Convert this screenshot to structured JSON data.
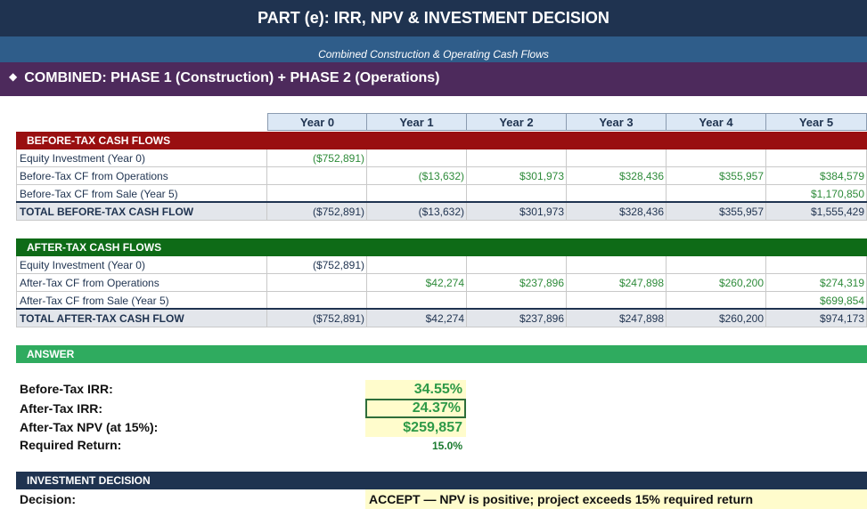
{
  "title": "PART (e): IRR, NPV & INVESTMENT DECISION",
  "subtitle": "Combined Construction & Operating Cash Flows",
  "combined_header": "COMBINED: PHASE 1 (Construction) + PHASE 2 (Operations)",
  "diamond_glyph": "◆",
  "years": [
    "Year 0",
    "Year 1",
    "Year 2",
    "Year 3",
    "Year 4",
    "Year 5"
  ],
  "before_tax": {
    "header": "BEFORE-TAX CASH FLOWS",
    "rows": [
      {
        "label": "Equity Investment (Year 0)",
        "values": [
          "($752,891)",
          "",
          "",
          "",
          "",
          ""
        ]
      },
      {
        "label": "Before-Tax CF from Operations",
        "values": [
          "",
          "($13,632)",
          "$301,973",
          "$328,436",
          "$355,957",
          "$384,579"
        ]
      },
      {
        "label": "Before-Tax CF from Sale (Year 5)",
        "values": [
          "",
          "",
          "",
          "",
          "",
          "$1,170,850"
        ]
      }
    ],
    "total": {
      "label": "TOTAL BEFORE-TAX CASH FLOW",
      "values": [
        "($752,891)",
        "($13,632)",
        "$301,973",
        "$328,436",
        "$355,957",
        "$1,555,429"
      ]
    }
  },
  "after_tax": {
    "header": "AFTER-TAX CASH FLOWS",
    "rows": [
      {
        "label": "Equity Investment (Year 0)",
        "values": [
          "($752,891)",
          "",
          "",
          "",
          "",
          ""
        ]
      },
      {
        "label": "After-Tax CF from Operations",
        "values": [
          "",
          "$42,274",
          "$237,896",
          "$247,898",
          "$260,200",
          "$274,319"
        ]
      },
      {
        "label": "After-Tax CF from Sale (Year 5)",
        "values": [
          "",
          "",
          "",
          "",
          "",
          "$699,854"
        ]
      }
    ],
    "total": {
      "label": "TOTAL AFTER-TAX CASH FLOW",
      "values": [
        "($752,891)",
        "$42,274",
        "$237,896",
        "$247,898",
        "$260,200",
        "$974,173"
      ]
    }
  },
  "answer": {
    "header": "ANSWER",
    "before_tax_irr_label": "Before-Tax IRR:",
    "before_tax_irr": "34.55%",
    "after_tax_irr_label": "After-Tax IRR:",
    "after_tax_irr": "24.37%",
    "npv_label": "After-Tax NPV (at 15%):",
    "npv": "$259,857",
    "required_return_label": "Required Return:",
    "required_return": "15.0%"
  },
  "decision": {
    "header": "INVESTMENT DECISION",
    "label": "Decision:",
    "value": "ACCEPT — NPV is positive; project exceeds 15% required return"
  },
  "colors": {
    "title_bg": "#1f3350",
    "subtitle_bg": "#2f5d8a",
    "combined_bg": "#4d2a5c",
    "before_tax_bg": "#990f10",
    "after_tax_bg": "#0e6b17",
    "answer_bg": "#2fab5f",
    "highlight_bg": "#fffccc",
    "value_green": "#2e8b3a"
  }
}
